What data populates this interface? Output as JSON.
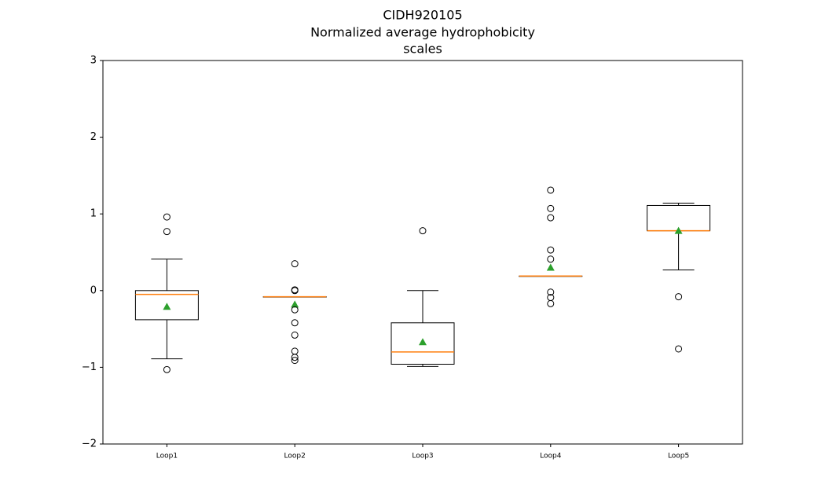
{
  "chart_data": {
    "type": "box",
    "title": [
      "CIDH920105",
      "Normalized average hydrophobicity",
      "scales"
    ],
    "categories": [
      "Loop1",
      "Loop2",
      "Loop3",
      "Loop4",
      "Loop5"
    ],
    "box_color": "#000000",
    "median_color": "#ff7f0e",
    "mean_color": "#2ca02c",
    "boxes": [
      {
        "whisker_low": -0.89,
        "q1": -0.38,
        "median": -0.05,
        "q3": 0,
        "whisker_high": 0.41,
        "mean": -0.21,
        "outliers": [
          0.96,
          0.77,
          -1.03
        ]
      },
      {
        "whisker_low": -0.08,
        "q1": -0.08,
        "median": -0.08,
        "q3": -0.08,
        "whisker_high": -0.08,
        "mean": -0.18,
        "outliers": [
          0.35,
          0.01,
          0,
          -0.25,
          -0.42,
          -0.58,
          -0.79,
          -0.87,
          -0.91
        ]
      },
      {
        "whisker_low": -0.99,
        "q1": -0.96,
        "median": -0.8,
        "q3": -0.42,
        "whisker_high": 0,
        "mean": -0.67,
        "outliers": [
          0.78
        ]
      },
      {
        "whisker_low": 0.19,
        "q1": 0.19,
        "median": 0.19,
        "q3": 0.19,
        "whisker_high": 0.19,
        "mean": 0.3,
        "outliers": [
          1.31,
          1.07,
          0.95,
          0.53,
          0.41,
          -0.02,
          -0.09,
          -0.17
        ]
      },
      {
        "whisker_low": 0.27,
        "q1": 0.78,
        "median": 0.78,
        "q3": 1.11,
        "whisker_high": 1.14,
        "mean": 0.78,
        "outliers": [
          -0.08,
          -0.76
        ]
      }
    ],
    "ylim": [
      -2,
      3
    ],
    "yticks": [
      {
        "value": -2,
        "label": "−2"
      },
      {
        "value": -1,
        "label": "−1"
      },
      0,
      1,
      2,
      3
    ],
    "grid": false
  }
}
